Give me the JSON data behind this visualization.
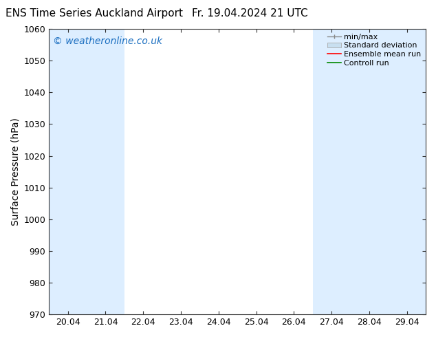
{
  "title_left": "ENS Time Series Auckland Airport",
  "title_right": "Fr. 19.04.2024 21 UTC",
  "ylabel": "Surface Pressure (hPa)",
  "ylim": [
    970,
    1060
  ],
  "yticks": [
    970,
    980,
    990,
    1000,
    1010,
    1020,
    1030,
    1040,
    1050,
    1060
  ],
  "xtick_labels": [
    "20.04",
    "21.04",
    "22.04",
    "23.04",
    "24.04",
    "25.04",
    "26.04",
    "27.04",
    "28.04",
    "29.04"
  ],
  "xtick_positions": [
    0,
    1,
    2,
    3,
    4,
    5,
    6,
    7,
    8,
    9
  ],
  "xlim": [
    -0.5,
    9.5
  ],
  "shaded_bands": [
    {
      "x_start": -0.5,
      "x_end": 0.5,
      "color": "#ddeeff"
    },
    {
      "x_start": 0.5,
      "x_end": 1.5,
      "color": "#ddeeff"
    },
    {
      "x_start": 7.0,
      "x_end": 7.5,
      "color": "#ddeeff"
    },
    {
      "x_start": 7.5,
      "x_end": 8.5,
      "color": "#ddeeff"
    },
    {
      "x_start": 9.0,
      "x_end": 9.5,
      "color": "#ddeeff"
    }
  ],
  "watermark_text": "© weatheronline.co.uk",
  "watermark_color": "#1a6ec0",
  "watermark_fontsize": 10,
  "background_color": "#ffffff",
  "legend_entries": [
    {
      "label": "min/max",
      "color": "#888888"
    },
    {
      "label": "Standard deviation",
      "color": "#c8dff0"
    },
    {
      "label": "Ensemble mean run",
      "color": "#ff0000"
    },
    {
      "label": "Controll run",
      "color": "#008800"
    }
  ],
  "title_fontsize": 11,
  "axis_label_fontsize": 10,
  "tick_fontsize": 9,
  "legend_fontsize": 8,
  "spine_color": "#333333"
}
